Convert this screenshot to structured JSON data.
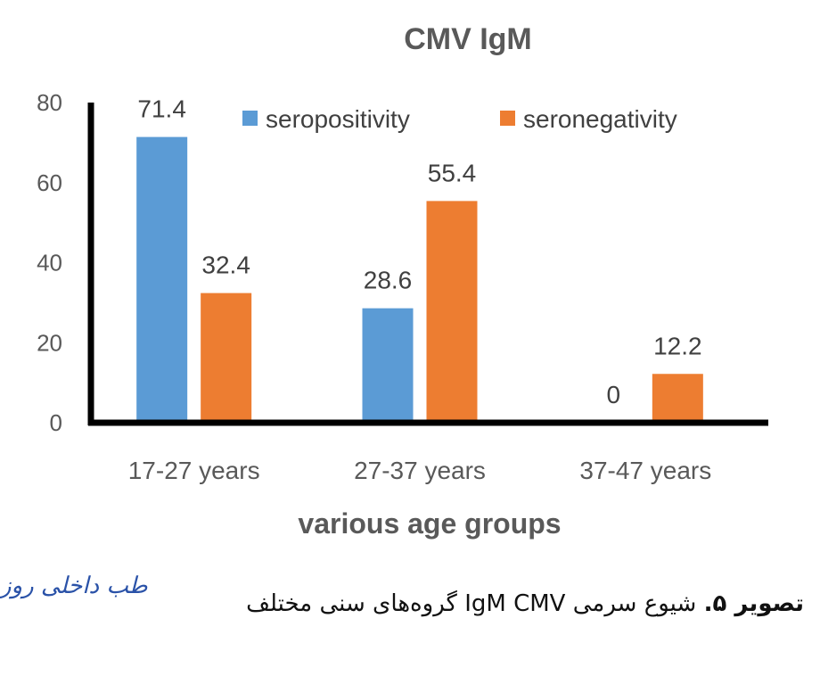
{
  "chart_data": {
    "type": "bar",
    "title": "CMV IgM",
    "xlabel": "various age groups",
    "ylabel": "",
    "ylim": [
      0,
      80
    ],
    "yticks": [
      0,
      20,
      40,
      60,
      80
    ],
    "categories": [
      "17-27 years",
      "27-37 years",
      "37-47 years"
    ],
    "series": [
      {
        "name": "seropositivity",
        "color": "#5b9bd5",
        "values": [
          71.4,
          28.6,
          0
        ]
      },
      {
        "name": "seronegativity",
        "color": "#ed7d31",
        "values": [
          32.4,
          55.4,
          12.2
        ]
      }
    ],
    "data_labels": [
      [
        "71.4",
        "28.6",
        "0"
      ],
      [
        "32.4",
        "55.4",
        "12.2"
      ]
    ],
    "legend_position": "top-right",
    "grid": false
  },
  "caption": {
    "prefix": "تصویر ۵.",
    "text": " شیوع سرمی IgM CMV گروه‌های سنی مختلف"
  },
  "logo": {
    "text": "طب داخلی روز"
  }
}
